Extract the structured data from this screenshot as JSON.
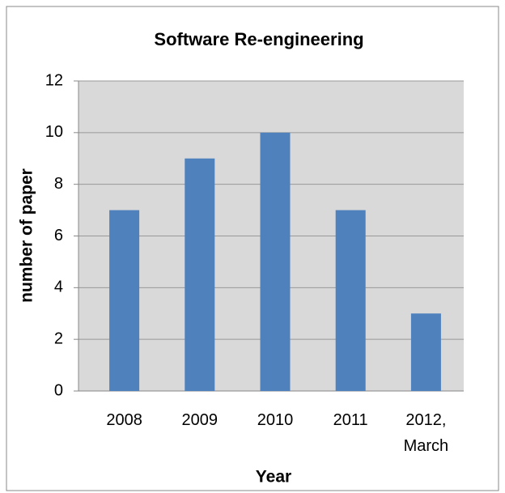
{
  "chart_data": {
    "type": "bar",
    "title": "Software Re-engineering",
    "xlabel": "Year",
    "ylabel": "number of paper",
    "categories": [
      "2008",
      "2009",
      "2010",
      "2011",
      "2012, March"
    ],
    "values": [
      7,
      9,
      10,
      7,
      3
    ],
    "color": "#4f81bd",
    "ylim": [
      0,
      12
    ],
    "yticks": [
      0,
      2,
      4,
      6,
      8,
      10,
      12
    ],
    "grid": true
  }
}
